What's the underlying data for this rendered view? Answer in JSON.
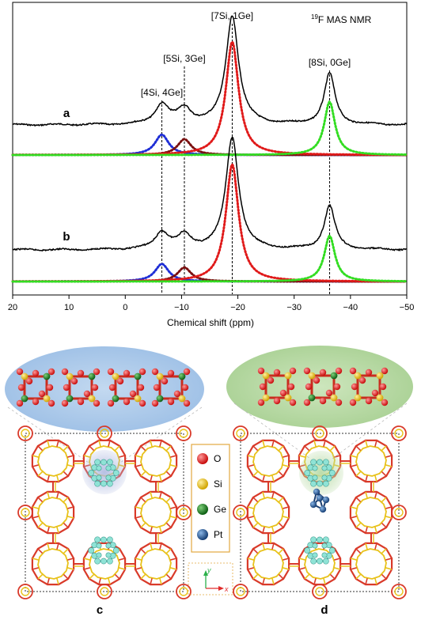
{
  "nmr_panel": {
    "nucleus_sup": "19",
    "nucleus_rest": "F MAS NMR",
    "xlabel": "Chemical shift (ppm)",
    "xlim": [
      20,
      -50
    ],
    "ticks": [
      "20",
      "10",
      "0",
      "−10",
      "−20",
      "−30",
      "−40",
      "−50"
    ],
    "tick_values": [
      20,
      10,
      0,
      -10,
      -20,
      -30,
      -40,
      -50
    ],
    "peak_labels": [
      {
        "text": "[4Si, 4Ge]",
        "ppm": -6.5
      },
      {
        "text": "[5Si, 3Ge]",
        "ppm": -10.5
      },
      {
        "text": "[7Si, 1Ge]",
        "ppm": -19
      },
      {
        "text": "[8Si, 0Ge]",
        "ppm": -36.3
      }
    ],
    "spectra": [
      {
        "label": "a",
        "baseline": 0.0,
        "peaks": [
          {
            "ppm": -6.5,
            "height": 0.18,
            "width": 1.4,
            "color": "#1f2fd6"
          },
          {
            "ppm": -10.5,
            "height": 0.14,
            "width": 1.4,
            "color": "#7a1010"
          },
          {
            "ppm": -19.0,
            "height": 1.0,
            "width": 1.3,
            "color": "#e01a1a"
          },
          {
            "ppm": -36.3,
            "height": 0.47,
            "width": 1.1,
            "color": "#33dd22"
          }
        ]
      },
      {
        "label": "b",
        "baseline": 0.0,
        "peaks": [
          {
            "ppm": -6.5,
            "height": 0.15,
            "width": 1.4,
            "color": "#1f2fd6"
          },
          {
            "ppm": -10.5,
            "height": 0.12,
            "width": 1.4,
            "color": "#7a1010"
          },
          {
            "ppm": -19.0,
            "height": 1.0,
            "width": 1.3,
            "color": "#e01a1a"
          },
          {
            "ppm": -36.3,
            "height": 0.39,
            "width": 1.1,
            "color": "#33dd22"
          }
        ]
      }
    ]
  },
  "legend": {
    "items": [
      {
        "label": "O",
        "color": "#e01515"
      },
      {
        "label": "Si",
        "color": "#e8c21a"
      },
      {
        "label": "Ge",
        "color": "#127a1a"
      },
      {
        "label": "Pt",
        "color": "#1b4f8a"
      }
    ]
  },
  "axes_indicator": {
    "y": "y",
    "x": "x"
  },
  "panel_labels": {
    "c": "c",
    "d": "d"
  },
  "colors": {
    "framework_red": "#d93a2a",
    "framework_yellow": "#e8c21a",
    "cluster_cyan": "#8fe3d6",
    "bubble_blue": "#a9c8e8",
    "bubble_green": "#b6d9a2"
  }
}
